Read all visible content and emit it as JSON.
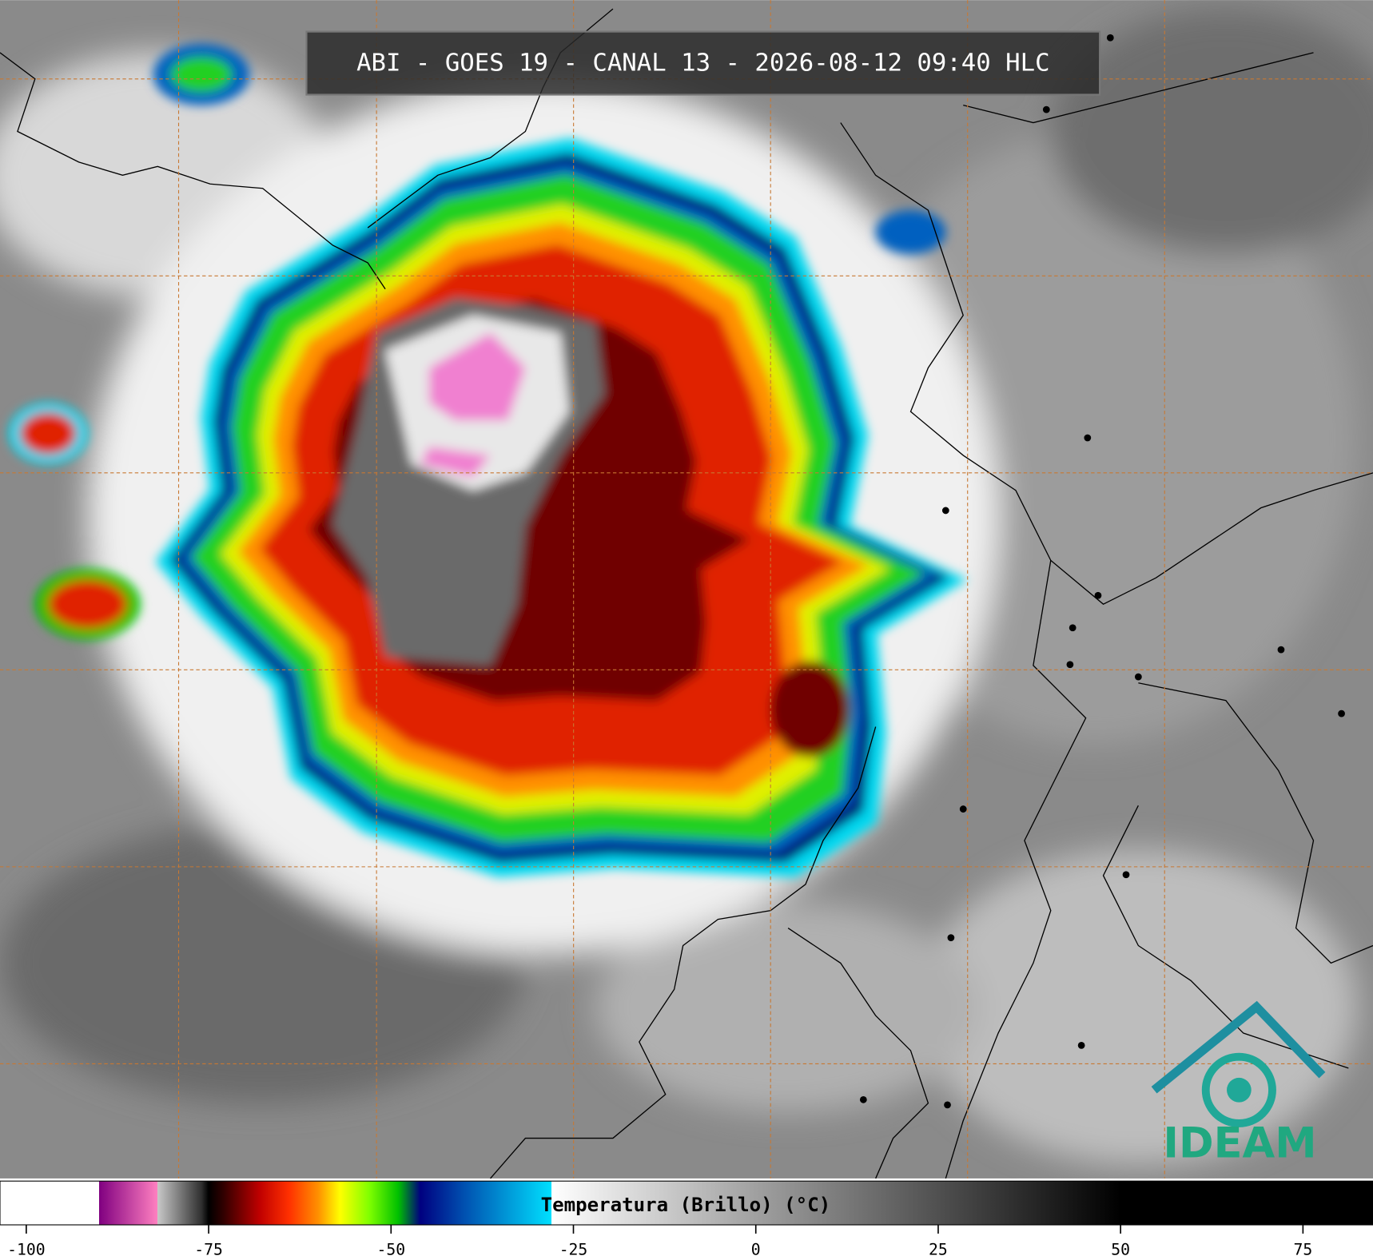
{
  "title": "ABI - GOES 19 - CANAL 13 - 2026-08-12 09:40 HLC",
  "logo": "IDEAM",
  "colorbar": {
    "label": "Temperatura (Brillo) (°C)",
    "lim": [
      -103.6,
      84.6
    ],
    "ticks": [
      -100,
      -75,
      -50,
      -25,
      0,
      25,
      50,
      75
    ],
    "stops": [
      [
        -103.6,
        "#ffffff"
      ],
      [
        -90,
        "#ffffff"
      ],
      [
        -90,
        "#800080"
      ],
      [
        -82,
        "#ff80c0"
      ],
      [
        -82,
        "#c8c8c8"
      ],
      [
        -76,
        "#303030"
      ],
      [
        -75,
        "#000000"
      ],
      [
        -73,
        "#300000"
      ],
      [
        -68,
        "#c00000"
      ],
      [
        -64,
        "#ff3000"
      ],
      [
        -60,
        "#ff9000"
      ],
      [
        -57,
        "#ffff00"
      ],
      [
        -53,
        "#80ff00"
      ],
      [
        -49,
        "#00c000"
      ],
      [
        -46,
        "#000080"
      ],
      [
        -40,
        "#0050b0"
      ],
      [
        -28,
        "#00e0ff"
      ],
      [
        -28,
        "#ffffff"
      ],
      [
        0,
        "#a0a0a0"
      ],
      [
        30,
        "#404040"
      ],
      [
        50,
        "#000000"
      ],
      [
        84.6,
        "#000000"
      ]
    ]
  }
}
